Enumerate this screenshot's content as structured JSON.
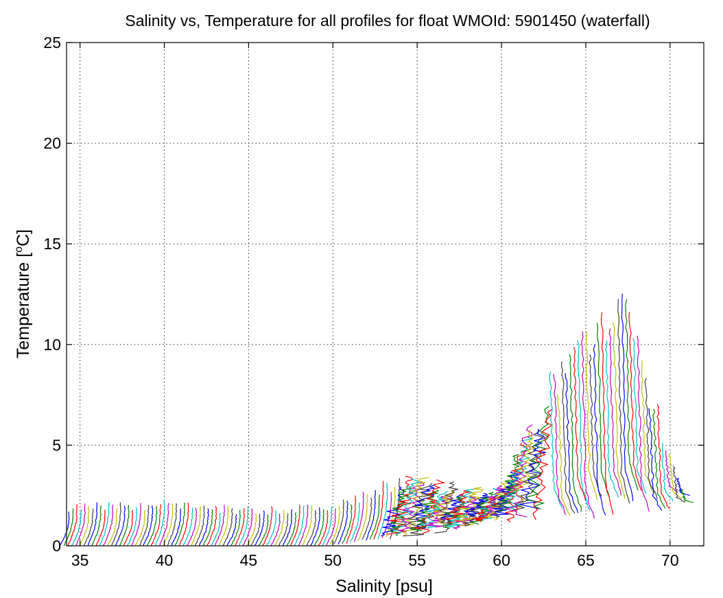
{
  "chart_data": {
    "type": "line",
    "title": "Salinity vs, Temperature for all profiles for float WMOId: 5901450 (waterfall)",
    "xlabel": "Salinity [psu]",
    "ylabel_main": "Temperature [",
    "ylabel_sup": "o",
    "ylabel_tail": "C]",
    "xlim": [
      34.2,
      72
    ],
    "ylim": [
      0,
      25
    ],
    "xticks": [
      "35",
      "40",
      "45",
      "50",
      "55",
      "60",
      "65",
      "70"
    ],
    "yticks": [
      "0",
      "5",
      "10",
      "15",
      "20",
      "25"
    ],
    "grid": true,
    "colors": [
      "#0000ff",
      "#008000",
      "#ff0000",
      "#00bfbf",
      "#bf00bf",
      "#bfbf00",
      "#404040"
    ],
    "series": {
      "count": 156,
      "x_offset_start": 34.35,
      "x_offset_step": 0.236,
      "profiles": [
        {
          "offset": 34.35,
          "t_max": 2.0,
          "t_min": 0.0
        },
        {
          "offset": 40.0,
          "t_max": 2.1,
          "t_min": 0.0
        },
        {
          "offset": 45.0,
          "t_max": 1.8,
          "t_min": 0.0
        },
        {
          "offset": 50.0,
          "t_max": 1.9,
          "t_min": 0.0
        },
        {
          "offset": 54.0,
          "t_max": 3.3,
          "t_min": 0.5
        },
        {
          "offset": 60.0,
          "t_max": 2.6,
          "t_min": 1.5
        },
        {
          "offset": 64.0,
          "t_max": 9.3,
          "t_min": 2.0
        },
        {
          "offset": 67.5,
          "t_max": 11.6,
          "t_min": 2.6
        },
        {
          "offset": 71.0,
          "t_max": 2.8,
          "t_min": 2.5
        }
      ]
    }
  }
}
